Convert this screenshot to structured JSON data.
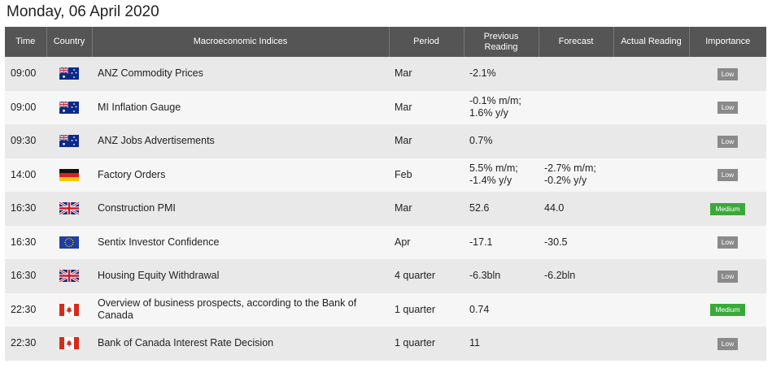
{
  "page": {
    "date": "Monday, 06 April 2020"
  },
  "columns": {
    "time": "Time",
    "country": "Country",
    "indices": "Macroeconomic Indices",
    "period": "Period",
    "previous": "Previous Reading",
    "forecast": "Forecast",
    "actual": "Actual Reading",
    "importance": "Importance"
  },
  "rows": [
    {
      "time": "09:00",
      "flag": "australia-flag-icon",
      "name": "ANZ Commodity Prices",
      "period": "Mar",
      "previous": "-2.1%",
      "forecast": "",
      "actual": "",
      "importance": "Low"
    },
    {
      "time": "09:00",
      "flag": "australia-flag-icon",
      "name": "MI Inflation Gauge",
      "period": "Mar",
      "previous": "-0.1% m/m;\n1.6% y/y",
      "forecast": "",
      "actual": "",
      "importance": "Low"
    },
    {
      "time": "09:30",
      "flag": "australia-flag-icon",
      "name": "ANZ Jobs Advertisements",
      "period": "Mar",
      "previous": "0.7%",
      "forecast": "",
      "actual": "",
      "importance": "Low"
    },
    {
      "time": "14:00",
      "flag": "germany-flag-icon",
      "name": "Factory Orders",
      "period": "Feb",
      "previous": "5.5% m/m;\n-1.4% y/y",
      "forecast": "-2.7% m/m;\n-0.2% y/y",
      "actual": "",
      "importance": "Low"
    },
    {
      "time": "16:30",
      "flag": "uk-flag-icon",
      "name": "Construction PMI",
      "period": "Mar",
      "previous": "52.6",
      "forecast": "44.0",
      "actual": "",
      "importance": "Medium"
    },
    {
      "time": "16:30",
      "flag": "eu-flag-icon",
      "name": "Sentix Investor Confidence",
      "period": "Apr",
      "previous": "-17.1",
      "forecast": "-30.5",
      "actual": "",
      "importance": "Low"
    },
    {
      "time": "16:30",
      "flag": "uk-flag-icon",
      "name": "Housing Equity Withdrawal",
      "period": "4 quarter",
      "previous": "-6.3bln",
      "forecast": "-6.2bln",
      "actual": "",
      "importance": "Low"
    },
    {
      "time": "22:30",
      "flag": "canada-flag-icon",
      "name": "Overview of business prospects, according to the Bank of Canada",
      "period": "1 quarter",
      "previous": "0.74",
      "forecast": "",
      "actual": "",
      "importance": "Medium"
    },
    {
      "time": "22:30",
      "flag": "canada-flag-icon",
      "name": "Bank of Canada Interest Rate Decision",
      "period": "1 quarter",
      "previous": "11",
      "forecast": "",
      "actual": "",
      "importance": "Low"
    }
  ],
  "colors": {
    "header_bg": "#555555",
    "row_odd": "#e9e9e9",
    "row_even": "#f6f6f6",
    "low": "#8a8a8a",
    "medium": "#39a93a"
  }
}
